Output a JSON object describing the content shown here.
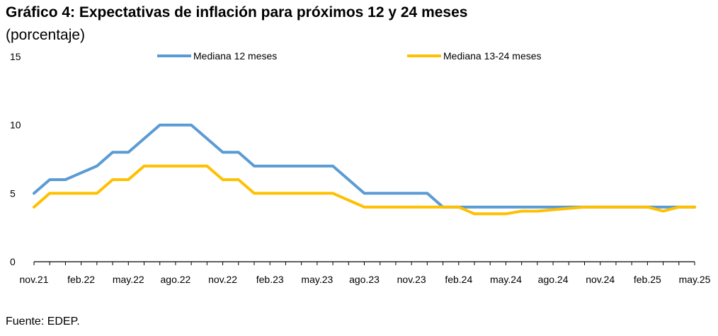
{
  "chart_data": {
    "type": "line",
    "title": "Gráfico 4: Expectativas de inflación para próximos 12 y 24 meses",
    "subtitle": "(porcentaje)",
    "source": "Fuente: EDEP.",
    "ylim": [
      0,
      15
    ],
    "yticks": [
      "0",
      "5",
      "10",
      "15"
    ],
    "grid": false,
    "legend_position": "top",
    "x": [
      "nov.21",
      "dic.21",
      "ene.22",
      "feb.22",
      "mar.22",
      "abr.22",
      "may.22",
      "jun.22",
      "jul.22",
      "ago.22",
      "sep.22",
      "oct.22",
      "nov.22",
      "dic.22",
      "ene.23",
      "feb.23",
      "mar.23",
      "abr.23",
      "may.23",
      "jun.23",
      "jul.23",
      "ago.23",
      "sep.23",
      "oct.23",
      "nov.23",
      "dic.23",
      "ene.24",
      "feb.24",
      "mar.24",
      "abr.24",
      "may.24",
      "jun.24",
      "jul.24",
      "ago.24",
      "sep.24",
      "oct.24",
      "nov.24",
      "dic.24",
      "ene.25",
      "feb.25",
      "mar.25",
      "abr.25",
      "may.25"
    ],
    "xtick_labels": [
      "nov.21",
      "feb.22",
      "may.22",
      "ago.22",
      "nov.22",
      "feb.23",
      "may.23",
      "ago.23",
      "nov.23",
      "feb.24",
      "may.24",
      "ago.24",
      "nov.24",
      "feb.25",
      "may.25"
    ],
    "series": [
      {
        "name": "Mediana 12 meses",
        "color": "#5B9BD5",
        "values": [
          5,
          6,
          6,
          6.5,
          7,
          8,
          8,
          9,
          10,
          10,
          10,
          9,
          8,
          8,
          7,
          7,
          7,
          7,
          7,
          7,
          6,
          5,
          5,
          5,
          5,
          5,
          4,
          4,
          4,
          4,
          4,
          4,
          4,
          4,
          4,
          4,
          4,
          4,
          4,
          4,
          4,
          4,
          4
        ]
      },
      {
        "name": "Mediana 13-24 meses",
        "color": "#FFC000",
        "values": [
          4,
          5,
          5,
          5,
          5,
          6,
          6,
          7,
          7,
          7,
          7,
          7,
          6,
          6,
          5,
          5,
          5,
          5,
          5,
          5,
          4.5,
          4,
          4,
          4,
          4,
          4,
          4,
          4,
          3.5,
          3.5,
          3.5,
          3.7,
          3.7,
          3.8,
          3.9,
          4,
          4,
          4,
          4,
          4,
          3.7,
          4,
          4
        ]
      }
    ]
  }
}
